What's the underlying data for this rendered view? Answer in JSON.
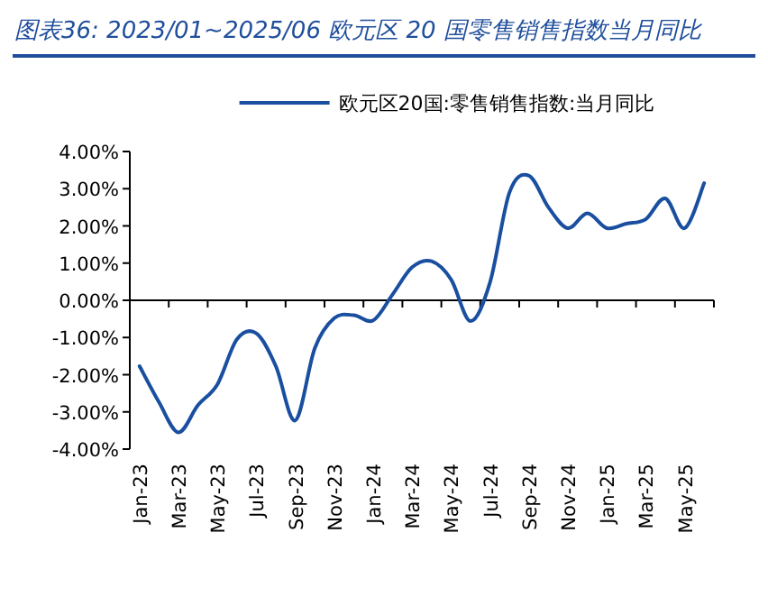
{
  "chart_data": {
    "type": "line",
    "title": "图表36:  2023/01~2025/06 欧元区 20 国零售销售指数当月同比",
    "categories": [
      "Jan-23",
      null,
      "Mar-23",
      null,
      "May-23",
      null,
      "Jul-23",
      null,
      "Sep-23",
      null,
      "Nov-23",
      null,
      "Jan-24",
      null,
      "Mar-24",
      null,
      "May-24",
      null,
      "Jul-24",
      null,
      "Sep-24",
      null,
      "Nov-24",
      null,
      "Jan-25",
      null,
      "Mar-25",
      null,
      "May-25",
      null
    ],
    "series": [
      {
        "name": "欧元区20国:零售销售指数:当月同比",
        "color": "#1a4fa0",
        "values": [
          -1.77,
          -2.74,
          -3.55,
          -2.82,
          -2.26,
          -1.05,
          -0.89,
          -1.77,
          -3.23,
          -1.29,
          -0.48,
          -0.4,
          -0.54,
          0.16,
          0.89,
          1.05,
          0.56,
          -0.56,
          0.48,
          2.9,
          3.35,
          2.5,
          1.94,
          2.34,
          1.94,
          2.06,
          2.18,
          2.74,
          1.94,
          3.15
        ]
      }
    ],
    "ylim": [
      -4,
      4
    ],
    "yticks": [
      {
        "value": 4,
        "label": "4.00%"
      },
      {
        "value": 3,
        "label": "3.00%"
      },
      {
        "value": 2,
        "label": "2.00%"
      },
      {
        "value": 1,
        "label": "1.00%"
      },
      {
        "value": 0,
        "label": "0.00%"
      },
      {
        "value": -1,
        "label": "-1.00%"
      },
      {
        "value": -2,
        "label": "-2.00%"
      },
      {
        "value": -3,
        "label": "-3.00%"
      },
      {
        "value": -4,
        "label": "-4.00%"
      }
    ],
    "legend": "top",
    "marker": "none",
    "line_style": "solid"
  }
}
